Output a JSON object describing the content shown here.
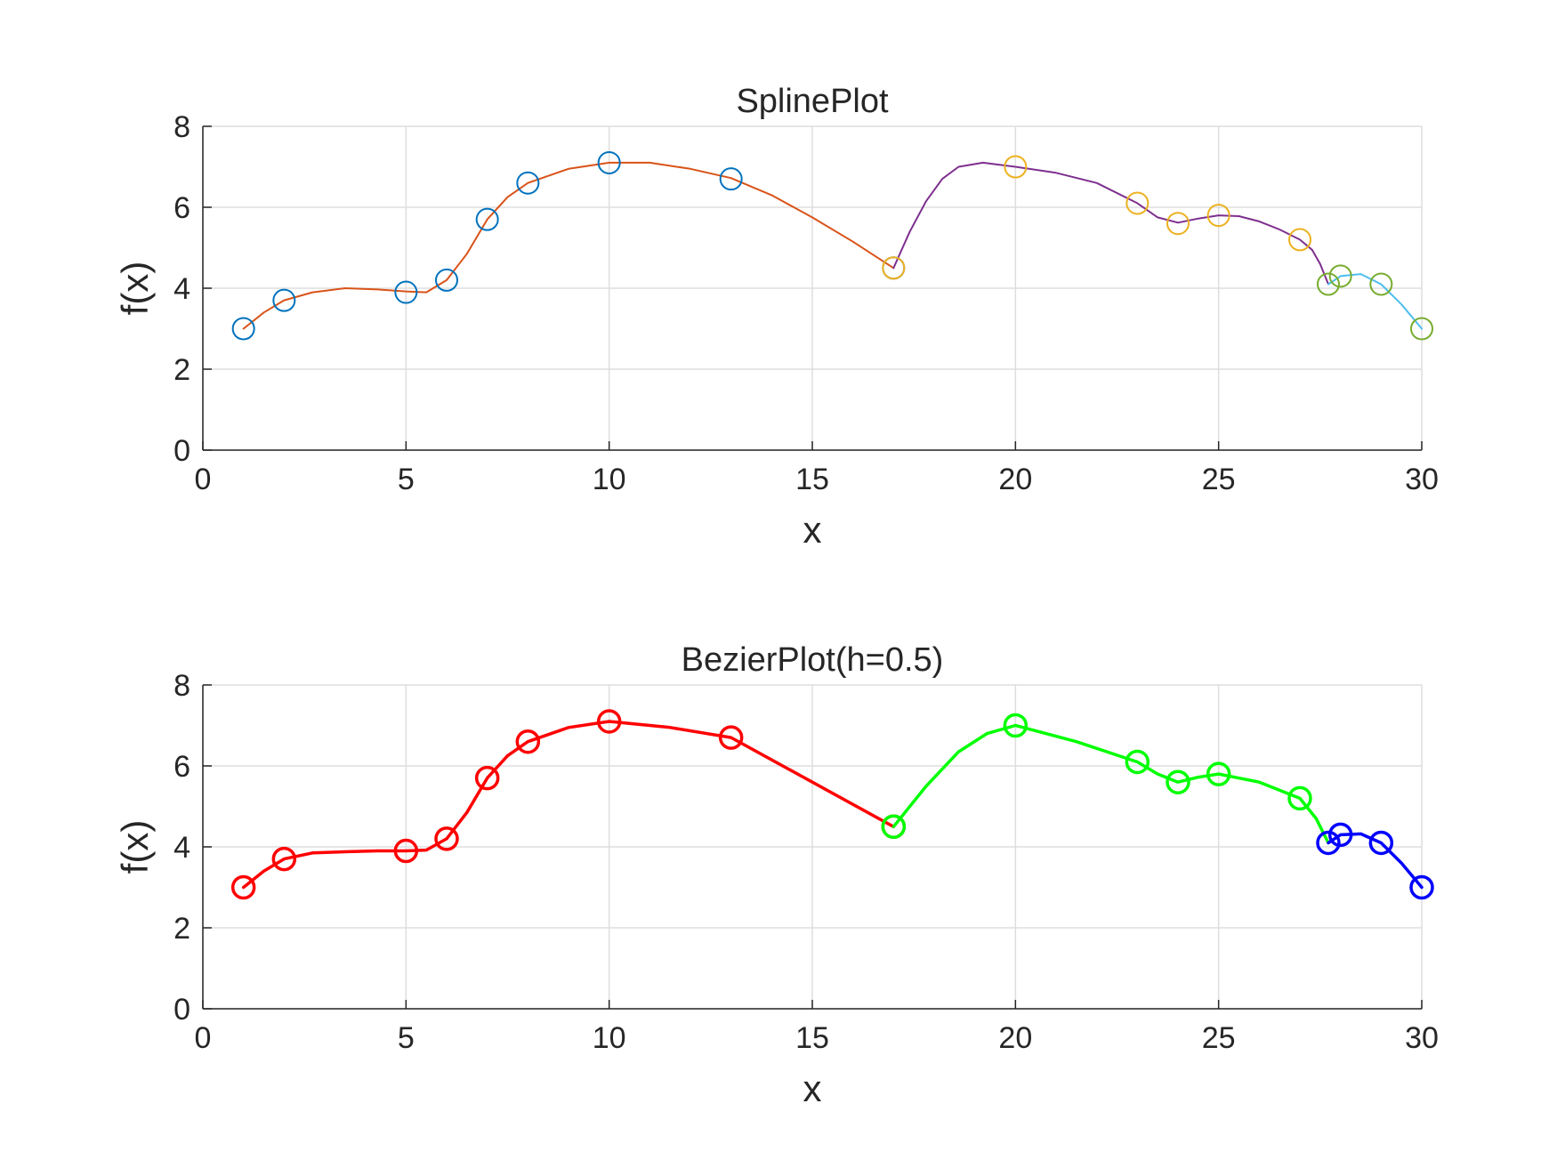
{
  "chart_data": [
    {
      "type": "line",
      "title": "SplinePlot",
      "xlabel": "x",
      "ylabel": "f(x)",
      "xlim": [
        0,
        30
      ],
      "ylim": [
        0,
        8
      ],
      "xticks": [
        "0",
        "5",
        "10",
        "15",
        "20",
        "25",
        "30"
      ],
      "yticks": [
        "0",
        "2",
        "4",
        "6",
        "8"
      ],
      "grid": true,
      "marker": "circle-open",
      "series": [
        {
          "color": "#D95319",
          "markerColor": "#0072BD",
          "x": [
            1,
            2,
            5,
            6,
            7,
            8,
            10,
            13,
            17
          ],
          "y": [
            3,
            3.7,
            3.9,
            4.2,
            5.7,
            6.6,
            7.1,
            6.7,
            4.5
          ],
          "curve": [
            [
              1,
              3
            ],
            [
              1.5,
              3.4
            ],
            [
              2,
              3.7
            ],
            [
              2.7,
              3.9
            ],
            [
              3.5,
              4.0
            ],
            [
              4.3,
              3.97
            ],
            [
              5,
              3.92
            ],
            [
              5.5,
              3.9
            ],
            [
              6,
              4.2
            ],
            [
              6.5,
              4.85
            ],
            [
              7,
              5.7
            ],
            [
              7.5,
              6.25
            ],
            [
              8,
              6.6
            ],
            [
              9,
              6.95
            ],
            [
              10,
              7.1
            ],
            [
              11,
              7.1
            ],
            [
              12,
              6.95
            ],
            [
              13,
              6.72
            ],
            [
              14,
              6.3
            ],
            [
              15,
              5.75
            ],
            [
              16,
              5.15
            ],
            [
              17,
              4.5
            ]
          ]
        },
        {
          "color": "#7E2F8E",
          "markerColor": "#EDB120",
          "x": [
            17,
            20,
            23,
            24,
            25,
            27
          ],
          "y": [
            4.5,
            7.0,
            6.1,
            5.6,
            5.8,
            5.2
          ],
          "curve": [
            [
              17,
              4.5
            ],
            [
              17.4,
              5.4
            ],
            [
              17.8,
              6.15
            ],
            [
              18.2,
              6.7
            ],
            [
              18.6,
              7.0
            ],
            [
              19.2,
              7.1
            ],
            [
              20,
              7.0
            ],
            [
              21,
              6.85
            ],
            [
              22,
              6.6
            ],
            [
              23,
              6.1
            ],
            [
              23.5,
              5.75
            ],
            [
              24,
              5.62
            ],
            [
              24.5,
              5.72
            ],
            [
              25,
              5.8
            ],
            [
              25.5,
              5.78
            ],
            [
              26,
              5.65
            ],
            [
              26.5,
              5.45
            ],
            [
              27,
              5.2
            ],
            [
              27.3,
              4.95
            ],
            [
              27.5,
              4.6
            ],
            [
              27.7,
              4.1
            ]
          ]
        },
        {
          "color": "#4DBEEE",
          "markerColor": "#77AC30",
          "x": [
            27.7,
            28,
            29,
            30
          ],
          "y": [
            4.1,
            4.3,
            4.1,
            3.0
          ],
          "curve": [
            [
              27.7,
              4.1
            ],
            [
              28,
              4.3
            ],
            [
              28.5,
              4.35
            ],
            [
              29,
              4.1
            ],
            [
              29.5,
              3.6
            ],
            [
              30,
              3.0
            ]
          ]
        }
      ]
    },
    {
      "type": "line",
      "title": "BezierPlot(h=0.5)",
      "xlabel": "x",
      "ylabel": "f(x)",
      "xlim": [
        0,
        30
      ],
      "ylim": [
        0,
        8
      ],
      "xticks": [
        "0",
        "5",
        "10",
        "15",
        "20",
        "25",
        "30"
      ],
      "yticks": [
        "0",
        "2",
        "4",
        "6",
        "8"
      ],
      "grid": true,
      "marker": "circle-open",
      "series": [
        {
          "color": "#FF0000",
          "markerColor": "#FF0000",
          "x": [
            1,
            2,
            5,
            6,
            7,
            8,
            10,
            13,
            17
          ],
          "y": [
            3,
            3.7,
            3.9,
            4.2,
            5.7,
            6.6,
            7.1,
            6.7,
            4.5
          ],
          "curve": [
            [
              1,
              3
            ],
            [
              1.5,
              3.4
            ],
            [
              2,
              3.7
            ],
            [
              2.7,
              3.85
            ],
            [
              3.5,
              3.88
            ],
            [
              4.3,
              3.9
            ],
            [
              5,
              3.9
            ],
            [
              5.5,
              3.92
            ],
            [
              6,
              4.2
            ],
            [
              6.5,
              4.85
            ],
            [
              7,
              5.7
            ],
            [
              7.5,
              6.25
            ],
            [
              8,
              6.6
            ],
            [
              9,
              6.95
            ],
            [
              10,
              7.1
            ],
            [
              11.5,
              6.95
            ],
            [
              13,
              6.7
            ],
            [
              15,
              5.6
            ],
            [
              17,
              4.5
            ]
          ]
        },
        {
          "color": "#00FF00",
          "markerColor": "#00FF00",
          "x": [
            17,
            20,
            23,
            24,
            25,
            27
          ],
          "y": [
            4.5,
            7.0,
            6.1,
            5.6,
            5.8,
            5.2
          ],
          "curve": [
            [
              17,
              4.5
            ],
            [
              17.8,
              5.5
            ],
            [
              18.6,
              6.35
            ],
            [
              19.3,
              6.8
            ],
            [
              20,
              7.0
            ],
            [
              21.5,
              6.6
            ],
            [
              23,
              6.1
            ],
            [
              23.5,
              5.8
            ],
            [
              24,
              5.6
            ],
            [
              24.5,
              5.72
            ],
            [
              25,
              5.8
            ],
            [
              26,
              5.6
            ],
            [
              27,
              5.2
            ],
            [
              27.4,
              4.7
            ],
            [
              27.7,
              4.1
            ]
          ]
        },
        {
          "color": "#0000FF",
          "markerColor": "#0000FF",
          "x": [
            27.7,
            28,
            29,
            30
          ],
          "y": [
            4.1,
            4.3,
            4.1,
            3.0
          ],
          "curve": [
            [
              27.7,
              4.1
            ],
            [
              28,
              4.3
            ],
            [
              28.5,
              4.32
            ],
            [
              29,
              4.1
            ],
            [
              29.5,
              3.6
            ],
            [
              30,
              3.0
            ]
          ]
        }
      ]
    }
  ]
}
